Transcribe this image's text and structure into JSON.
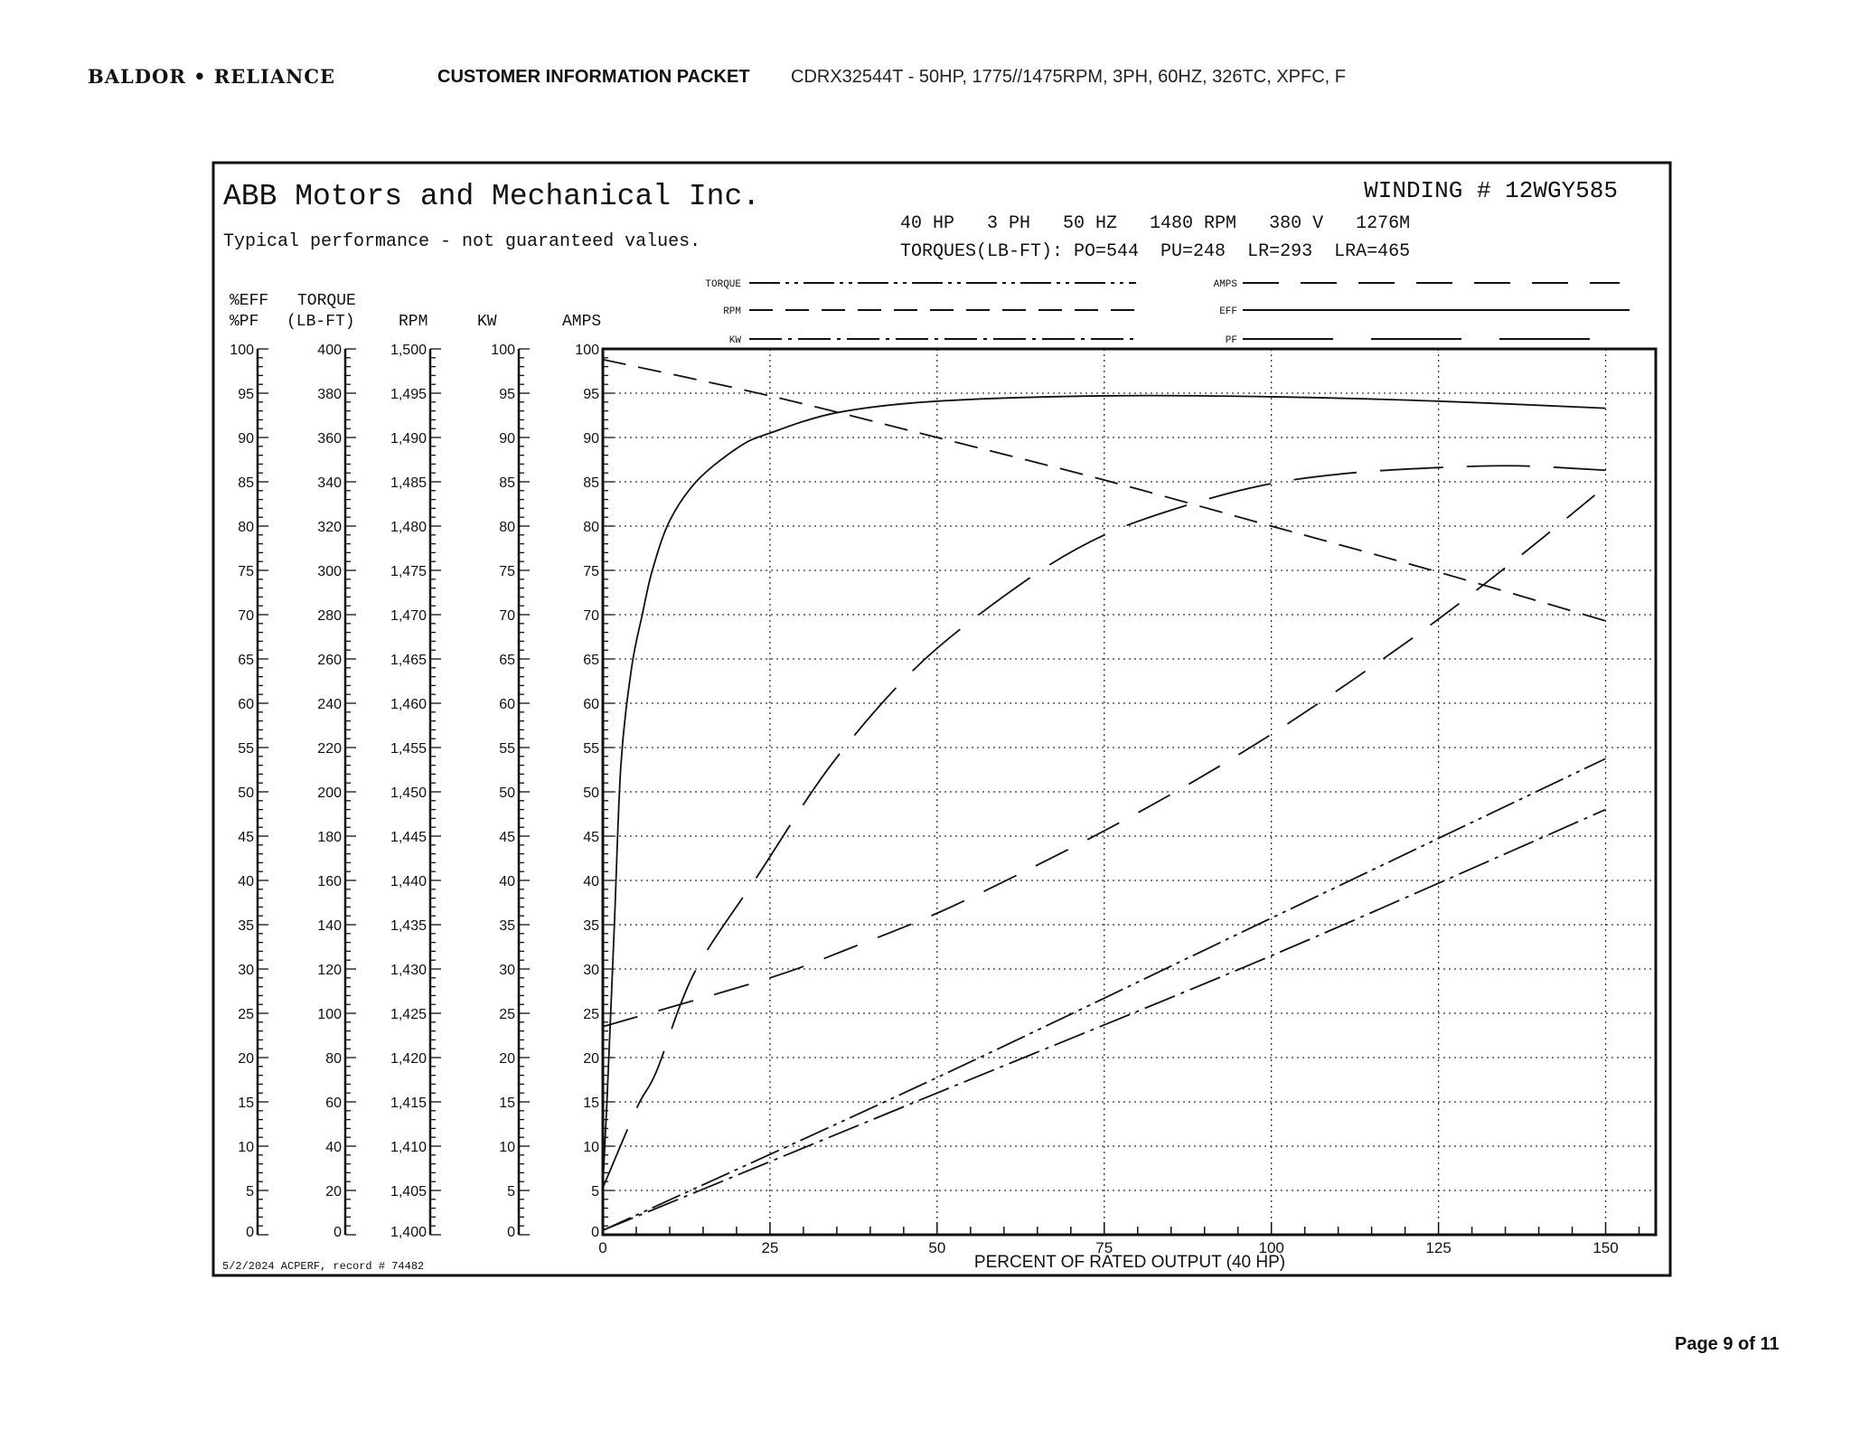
{
  "header": {
    "logo_text": "BALDOR • RELIANCE",
    "packet_title": "CUSTOMER INFORMATION PACKET",
    "description": "CDRX32544T - 50HP, 1775//1475RPM, 3PH, 60HZ, 326TC, XPFC, F"
  },
  "chart_box": {
    "company": "ABB Motors and Mechanical Inc.",
    "disclaimer": "Typical performance - not guaranteed values.",
    "winding": "WINDING # 12WGY585",
    "specs": "40 HP   3 PH   50 HZ   1480 RPM   380 V   1276M",
    "torques": "TORQUES(LB-FT): PO=544  PU=248  LR=293  LRA=465",
    "footer": "5/2/2024 ACPERF, record # 74482"
  },
  "axis_headers": {
    "eff_top": "%EFF",
    "eff_bottom": "%PF",
    "torque_top": "TORQUE",
    "torque_bottom": "(LB-FT)",
    "rpm": "RPM",
    "kw": "KW",
    "amps": "AMPS"
  },
  "legend": [
    {
      "label": "TORQUE",
      "dash": "torque"
    },
    {
      "label": "RPM",
      "dash": "rpm"
    },
    {
      "label": "KW",
      "dash": "kw"
    },
    {
      "label": "AMPS",
      "dash": "amps"
    },
    {
      "label": "EFF",
      "dash": "eff"
    },
    {
      "label": "PF",
      "dash": "pf"
    }
  ],
  "page": "Page 9 of 11",
  "chart_data": {
    "type": "line",
    "xlabel": "PERCENT OF RATED OUTPUT (40 HP)",
    "xlim": [
      0,
      157.5
    ],
    "x_ticks": [
      "0",
      "25",
      "50",
      "75",
      "100",
      "125",
      "150"
    ],
    "grid": true,
    "y_axes": {
      "eff_pf": {
        "range": [
          0,
          100
        ],
        "ticks": [
          "100",
          "95",
          "90",
          "85",
          "80",
          "75",
          "70",
          "65",
          "60",
          "55",
          "50",
          "45",
          "40",
          "35",
          "30",
          "25",
          "20",
          "15",
          "10",
          "5",
          "0"
        ]
      },
      "torque": {
        "range": [
          0,
          400
        ],
        "ticks": [
          "400",
          "380",
          "360",
          "340",
          "320",
          "300",
          "280",
          "260",
          "240",
          "220",
          "200",
          "180",
          "160",
          "140",
          "120",
          "100",
          "80",
          "60",
          "40",
          "20",
          "0"
        ]
      },
      "rpm": {
        "range": [
          1400,
          1500
        ],
        "ticks": [
          "1,500",
          "1,495",
          "1,490",
          "1,485",
          "1,480",
          "1,475",
          "1,470",
          "1,465",
          "1,460",
          "1,455",
          "1,450",
          "1,445",
          "1,440",
          "1,435",
          "1,430",
          "1,425",
          "1,420",
          "1,415",
          "1,410",
          "1,405",
          "1,400"
        ]
      },
      "kw": {
        "range": [
          0,
          100
        ],
        "ticks": [
          "100",
          "95",
          "90",
          "85",
          "80",
          "75",
          "70",
          "65",
          "60",
          "55",
          "50",
          "45",
          "40",
          "35",
          "30",
          "25",
          "20",
          "15",
          "10",
          "5",
          "0"
        ]
      },
      "amps": {
        "range": [
          0,
          100
        ],
        "ticks": [
          "100",
          "95",
          "90",
          "85",
          "80",
          "75",
          "70",
          "65",
          "60",
          "55",
          "50",
          "45",
          "40",
          "35",
          "30",
          "25",
          "20",
          "15",
          "10",
          "5",
          "0"
        ]
      }
    },
    "series": [
      {
        "name": "EFF",
        "axis": "eff_pf",
        "x": [
          0,
          0.6,
          1.7,
          2.7,
          4.3,
          5.9,
          7.4,
          10,
          14.2,
          20.5,
          25,
          35,
          50,
          75,
          100,
          125,
          150
        ],
        "y": [
          5.5,
          14.8,
          34.5,
          53,
          64,
          70,
          75,
          80.6,
          85.2,
          89,
          90.5,
          92.8,
          94.1,
          94.7,
          94.6,
          94.1,
          93.3
        ]
      },
      {
        "name": "PF",
        "axis": "eff_pf",
        "x": [
          0,
          5.2,
          8,
          13.7,
          23.4,
          34.4,
          47.5,
          63,
          75,
          88,
          100,
          112,
          125,
          137,
          150
        ],
        "y": [
          5.3,
          14.5,
          18.4,
          29.6,
          40.8,
          53.3,
          64.5,
          73.7,
          79,
          82.5,
          84.8,
          86,
          86.6,
          86.8,
          86.3
        ]
      },
      {
        "name": "AMPS",
        "axis": "amps",
        "x": [
          0,
          25,
          37.5,
          50,
          62.5,
          75,
          87.5,
          100,
          112.5,
          125,
          137.5,
          150
        ],
        "y": [
          23.5,
          29,
          32.5,
          36.3,
          40.8,
          45.6,
          50.8,
          56.5,
          62.8,
          69.5,
          76.8,
          84.5
        ]
      },
      {
        "name": "RPM",
        "axis": "rpm",
        "x": [
          0,
          25,
          50,
          75,
          100,
          125,
          150
        ],
        "y": [
          1498.8,
          1494.7,
          1490,
          1485.2,
          1480,
          1474.8,
          1469.3
        ]
      },
      {
        "name": "TORQUE",
        "axis": "torque",
        "x": [
          0,
          50,
          100,
          150
        ],
        "y": [
          2,
          71,
          143,
          215
        ]
      },
      {
        "name": "KW",
        "axis": "kw",
        "x": [
          0,
          50,
          100,
          150
        ],
        "y": [
          0.5,
          16,
          31.5,
          48
        ]
      }
    ]
  }
}
